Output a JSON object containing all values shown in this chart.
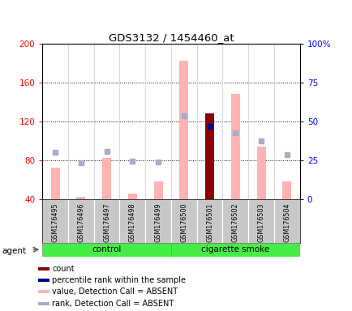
{
  "title": "GDS3132 / 1454460_at",
  "samples": [
    "GSM176495",
    "GSM176496",
    "GSM176497",
    "GSM176498",
    "GSM176499",
    "GSM176500",
    "GSM176501",
    "GSM176502",
    "GSM176503",
    "GSM176504"
  ],
  "ylim_left": [
    40,
    200
  ],
  "yticks_left": [
    40,
    80,
    120,
    160,
    200
  ],
  "yticks_right": [
    0,
    25,
    50,
    75,
    100
  ],
  "ytick_labels_right": [
    "0",
    "25",
    "50",
    "75",
    "100%"
  ],
  "pink_bar_values": [
    72,
    42,
    82,
    46,
    58,
    182,
    0,
    148,
    94,
    58
  ],
  "light_blue_sq_values": [
    88,
    77,
    89,
    79,
    78,
    126,
    115,
    108,
    100,
    86
  ],
  "dark_red_bar_index": 6,
  "dark_red_bar_value": 128,
  "dark_blue_sq_index": 6,
  "dark_blue_sq_value": 115,
  "bar_bottom": 40,
  "bar_width": 0.35,
  "pink_bar_color": "#FFB3B3",
  "light_blue_sq_color": "#AAAACC",
  "dark_red_color": "#8B0000",
  "dark_blue_color": "#00008B",
  "bg_plot": "#FFFFFF",
  "tick_label_area_color": "#C8C8C8",
  "group_bar_color": "#44EE44",
  "legend_items": [
    {
      "color": "#8B0000",
      "label": "count"
    },
    {
      "color": "#00008B",
      "label": "percentile rank within the sample"
    },
    {
      "color": "#FFB3B3",
      "label": "value, Detection Call = ABSENT"
    },
    {
      "color": "#AAAACC",
      "label": "rank, Detection Call = ABSENT"
    }
  ],
  "n_control": 5,
  "n_smoke": 5
}
